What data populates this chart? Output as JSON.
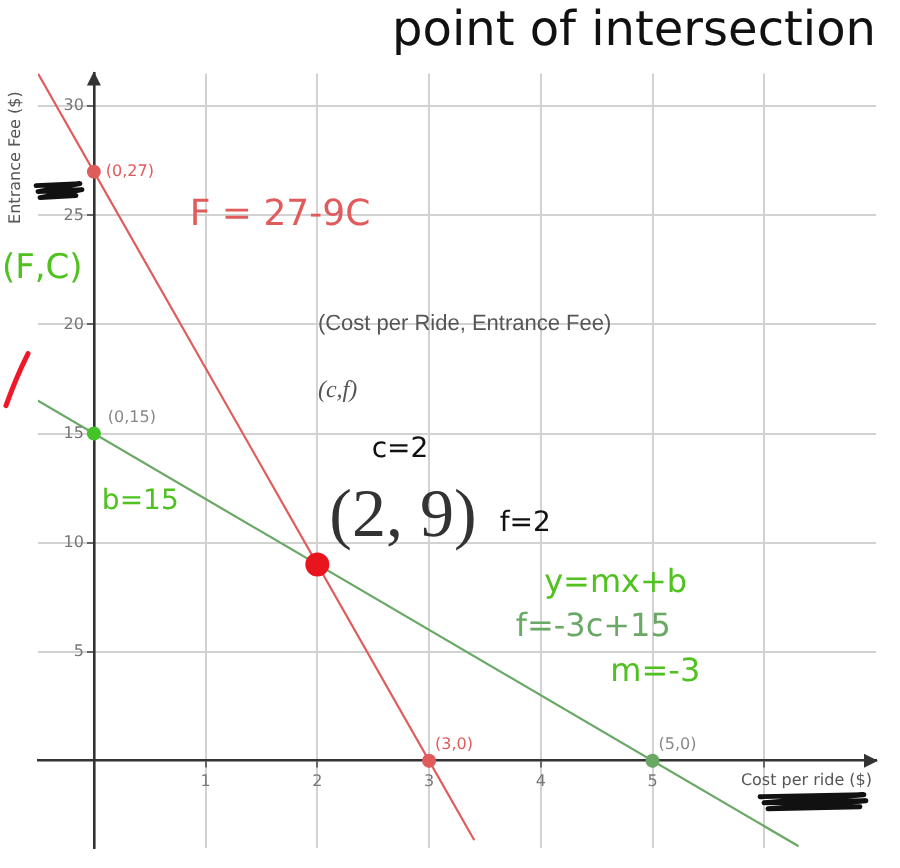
{
  "chart_data": {
    "type": "line",
    "title": "point of intersection",
    "xlabel": "Cost per ride ($)",
    "ylabel": "Entrance Fee ($)",
    "xlim": [
      -0.5,
      7
    ],
    "ylim": [
      -4,
      31.5
    ],
    "xticks": [
      1,
      2,
      3,
      4,
      5,
      {
        "value": 6,
        "label": null
      }
    ],
    "yticks": [
      5,
      10,
      15,
      20,
      25,
      30
    ],
    "grid": true,
    "series": [
      {
        "name": "F = 27-9C",
        "color": "#e05c5c",
        "x": [
          -0.5,
          3.4
        ],
        "values": [
          31.5,
          -3.6
        ],
        "marker": "none"
      },
      {
        "name": "f=-3c+15",
        "color": "#6aa866",
        "x": [
          -0.5,
          6.3
        ],
        "values": [
          16.5,
          -3.9
        ],
        "marker": "none"
      },
      {
        "type": "scatter",
        "x": [
          0,
          3,
          0,
          5
        ],
        "values": [
          27,
          0,
          15,
          0
        ],
        "colors": [
          "#e05c5c",
          "#e05c5c",
          "#45c42a",
          "#6aa866"
        ],
        "marker": "circle"
      },
      {
        "type": "scatter",
        "color": "#e8141e",
        "x": [
          2
        ],
        "values": [
          9
        ],
        "marker": "circle"
      }
    ],
    "annotations": [
      "(Cost per Ride, Entrance Fee)",
      "(c,f)",
      {
        "text": "(2, 9)",
        "x": 2,
        "y": 9
      },
      {
        "text": "(0,27)",
        "x": 0,
        "y": 27
      },
      {
        "text": "(0,15)",
        "x": 0,
        "y": 15
      },
      {
        "text": "(3,0)",
        "x": 3,
        "y": 0
      },
      {
        "text": "(5,0)",
        "x": 5,
        "y": 0
      },
      {
        "text": "b=15",
        "x": 0,
        "y": 15
      },
      "(F,C)",
      "c=2",
      "f=2",
      "y=mx+b",
      "m=-3"
    ]
  }
}
